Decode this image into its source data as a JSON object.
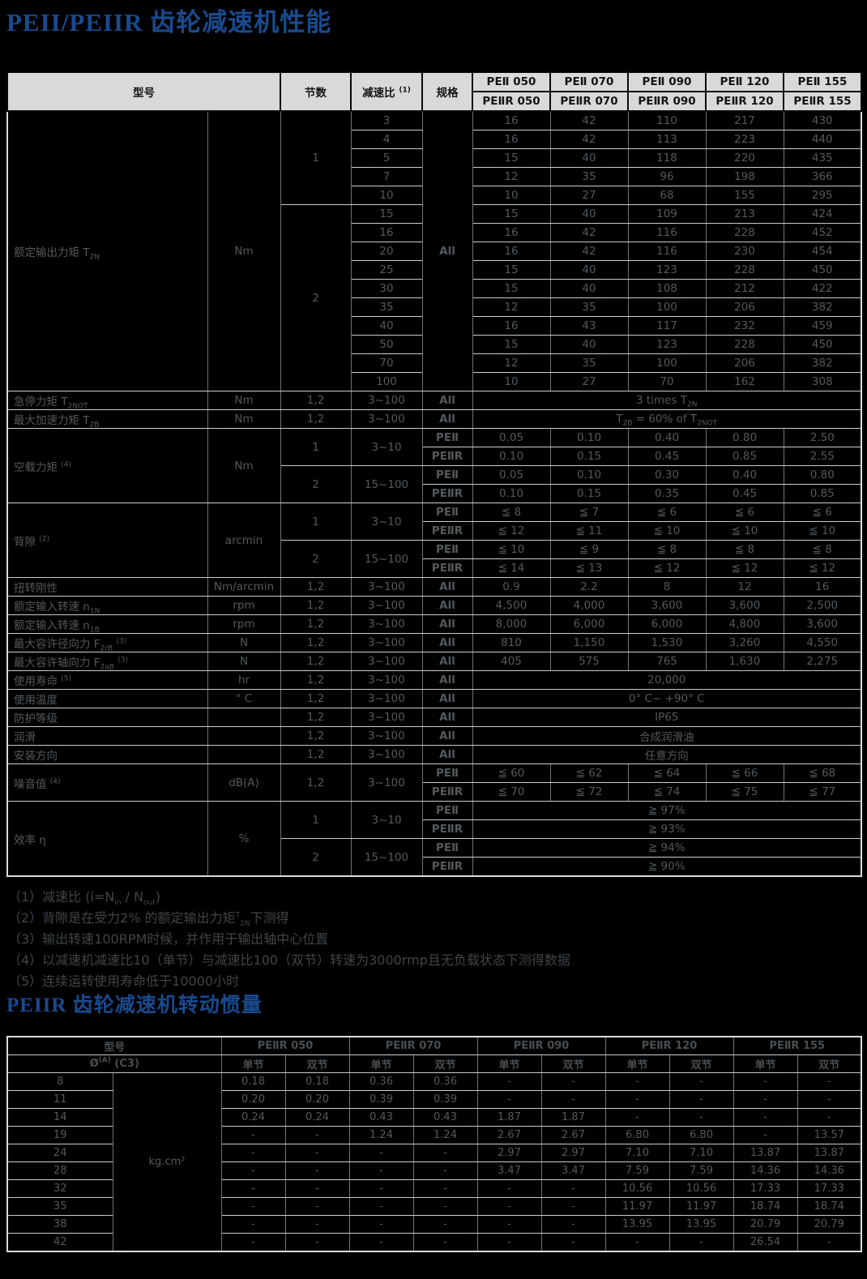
{
  "page": {
    "background": "#000000",
    "accent_blue": "#1a4a8e",
    "header_fill": "#d9d9d9"
  },
  "titles": {
    "performance": "PEII/PEIIR 齿轮减速机性能",
    "inertia": "PEIIR 齿轮减速机转动惯量"
  },
  "footnotes": [
    "（1）减速比 (i=N~in~ / N~out~)",
    "（2）背隙是在受力2% 的额定输出力矩^T^~2N~下测得",
    "（3）输出转速100RPM时候，并作用于输出轴中心位置",
    "（4）以减速机减速比10（单节）与减速比100（双节）转速为3000rmp且无负载状态下测得数据",
    "（5）连续运转使用寿命低于10000小时"
  ],
  "table1": {
    "rows": [
      [
        {
          "t": "型号",
          "cs": 2,
          "rs": 2,
          "c": "hdr"
        },
        {
          "t": "节数",
          "rs": 2,
          "c": "hdr"
        },
        {
          "t": "减速比 ^(1)^",
          "rs": 2,
          "c": "hdr"
        },
        {
          "t": "规格",
          "rs": 2,
          "c": "hdr"
        },
        {
          "t": "PEⅡ 050",
          "c": "hdr"
        },
        {
          "t": "PEⅡ 070",
          "c": "hdr"
        },
        {
          "t": "PEⅡ 090",
          "c": "hdr"
        },
        {
          "t": "PEⅡ 120",
          "c": "hdr"
        },
        {
          "t": "PEⅡ 155",
          "c": "hdr"
        }
      ],
      [
        {
          "t": "PEⅡR 050",
          "c": "hdr"
        },
        {
          "t": "PEⅡR 070",
          "c": "hdr"
        },
        {
          "t": "PEⅡR 090",
          "c": "hdr"
        },
        {
          "t": "PEⅡR 120",
          "c": "hdr"
        },
        {
          "t": "PEⅡR 155",
          "c": "hdr"
        }
      ],
      [
        {
          "t": "额定输出力矩 T~2N~",
          "c": "lbl",
          "rs": 15
        },
        {
          "t": "Nm",
          "c": "unit",
          "rs": 15
        },
        {
          "t": "1",
          "rs": 5
        },
        "3",
        {
          "t": "All",
          "c": "spec",
          "rs": 15
        },
        "16",
        "42",
        "110",
        "217",
        "430"
      ],
      [
        "4",
        "16",
        "42",
        "113",
        "223",
        "440"
      ],
      [
        "5",
        "15",
        "40",
        "118",
        "220",
        "435"
      ],
      [
        "7",
        "12",
        "35",
        "96",
        "198",
        "366"
      ],
      [
        "10",
        "10",
        "27",
        "68",
        "155",
        "295"
      ],
      [
        {
          "t": "2",
          "rs": 10
        },
        "15",
        "15",
        "40",
        "109",
        "213",
        "424"
      ],
      [
        "16",
        "16",
        "42",
        "116",
        "228",
        "452"
      ],
      [
        "20",
        "16",
        "42",
        "116",
        "230",
        "454"
      ],
      [
        "25",
        "15",
        "40",
        "123",
        "228",
        "450"
      ],
      [
        "30",
        "15",
        "40",
        "108",
        "212",
        "422"
      ],
      [
        "35",
        "12",
        "35",
        "100",
        "206",
        "382"
      ],
      [
        "40",
        "16",
        "43",
        "117",
        "232",
        "459"
      ],
      [
        "50",
        "15",
        "40",
        "123",
        "228",
        "450"
      ],
      [
        "70",
        "12",
        "35",
        "100",
        "206",
        "382"
      ],
      [
        "100",
        "10",
        "27",
        "70",
        "162",
        "308"
      ],
      [
        {
          "t": "急停力矩 T~2NOT~",
          "c": "lbl"
        },
        {
          "t": "Nm",
          "c": "unit"
        },
        "1,2",
        "3~100",
        {
          "t": "All",
          "c": "spec"
        },
        {
          "t": "3 times T~2N~",
          "cs": 5
        }
      ],
      [
        {
          "t": "最大加速力矩 T~2B~",
          "c": "lbl"
        },
        {
          "t": "Nm",
          "c": "unit"
        },
        "1,2",
        "3~100",
        {
          "t": "All",
          "c": "spec"
        },
        {
          "t": "T~2B~ = 60% of T~2NOT~",
          "cs": 5
        }
      ],
      [
        {
          "t": "空载力矩 ^(4)^",
          "c": "lbl",
          "rs": 4
        },
        {
          "t": "Nm",
          "c": "unit",
          "rs": 4
        },
        {
          "t": "1",
          "rs": 2
        },
        {
          "t": "3~10",
          "rs": 2
        },
        {
          "t": "PEⅡ",
          "c": "spec"
        },
        "0.05",
        "0.10",
        "0.40",
        "0.80",
        "2.50"
      ],
      [
        {
          "t": "PEⅡR",
          "c": "spec"
        },
        "0.10",
        "0.15",
        "0.45",
        "0.85",
        "2.55"
      ],
      [
        {
          "t": "2",
          "rs": 2
        },
        {
          "t": "15~100",
          "rs": 2
        },
        {
          "t": "PEⅡ",
          "c": "spec"
        },
        "0.05",
        "0.10",
        "0.30",
        "0.40",
        "0.80"
      ],
      [
        {
          "t": "PEⅡR",
          "c": "spec"
        },
        "0.10",
        "0.15",
        "0.35",
        "0.45",
        "0.85"
      ],
      [
        {
          "t": "背隙 ^(2)^",
          "c": "lbl",
          "rs": 4
        },
        {
          "t": "arcmin",
          "c": "unit",
          "rs": 4
        },
        {
          "t": "1",
          "rs": 2
        },
        {
          "t": "3~10",
          "rs": 2
        },
        {
          "t": "PEⅡ",
          "c": "spec"
        },
        "≦ 8",
        "≦ 7",
        "≦ 6",
        "≦ 6",
        "≦ 6"
      ],
      [
        {
          "t": "PEⅡR",
          "c": "spec"
        },
        "≦ 12",
        "≦ 11",
        "≦ 10",
        "≦ 10",
        "≦ 10"
      ],
      [
        {
          "t": "2",
          "rs": 2
        },
        {
          "t": "15~100",
          "rs": 2
        },
        {
          "t": "PEⅡ",
          "c": "spec"
        },
        "≦ 10",
        "≦ 9",
        "≦ 8",
        "≦ 8",
        "≦ 8"
      ],
      [
        {
          "t": "PEⅡR",
          "c": "spec"
        },
        "≦ 14",
        "≦ 13",
        "≦ 12",
        "≦ 12",
        "≦ 12"
      ],
      [
        {
          "t": "扭转刚性",
          "c": "lbl"
        },
        {
          "t": "Nm/arcmin",
          "c": "unit"
        },
        "1,2",
        "3~100",
        {
          "t": "All",
          "c": "spec"
        },
        "0.9",
        "2.2",
        "8",
        "12",
        "16"
      ],
      [
        {
          "t": "额定输入转速 n~1N~",
          "c": "lbl"
        },
        {
          "t": "rpm",
          "c": "unit"
        },
        "1,2",
        "3~100",
        {
          "t": "All",
          "c": "spec"
        },
        "4,500",
        "4,000",
        "3,600",
        "3,600",
        "2,500"
      ],
      [
        {
          "t": "额定输入转速 n~1B~",
          "c": "lbl"
        },
        {
          "t": "rpm",
          "c": "unit"
        },
        "1,2",
        "3~100",
        {
          "t": "All",
          "c": "spec"
        },
        "8,000",
        "6,000",
        "6,000",
        "4,800",
        "3,600"
      ],
      [
        {
          "t": "最大容许径向力 F~2rB~ ^(3)^",
          "c": "lbl"
        },
        {
          "t": "N",
          "c": "unit"
        },
        "1,2",
        "3~100",
        {
          "t": "All",
          "c": "spec"
        },
        "810",
        "1,150",
        "1,530",
        "3,260",
        "4,550"
      ],
      [
        {
          "t": "最大容许轴向力 F~2aB~ ^(3)^",
          "c": "lbl"
        },
        {
          "t": "N",
          "c": "unit"
        },
        "1,2",
        "3~100",
        {
          "t": "All",
          "c": "spec"
        },
        "405",
        "575",
        "765",
        "1,630",
        "2,275"
      ],
      [
        {
          "t": "使用寿命 ^(5)^",
          "c": "lbl"
        },
        {
          "t": "hr",
          "c": "unit"
        },
        "1,2",
        "3~100",
        {
          "t": "All",
          "c": "spec"
        },
        {
          "t": "20,000",
          "cs": 5
        }
      ],
      [
        {
          "t": "使用温度",
          "c": "lbl"
        },
        {
          "t": "° C",
          "c": "unit"
        },
        "1,2",
        "3~100",
        {
          "t": "All",
          "c": "spec"
        },
        {
          "t": "0° C~ +90° C",
          "cs": 5
        }
      ],
      [
        {
          "t": "防护等级",
          "c": "lbl"
        },
        {
          "t": "",
          "c": "unit"
        },
        "1,2",
        "3~100",
        {
          "t": "All",
          "c": "spec"
        },
        {
          "t": "IP65",
          "cs": 5
        }
      ],
      [
        {
          "t": "润滑",
          "c": "lbl"
        },
        {
          "t": "",
          "c": "unit"
        },
        "1,2",
        "3~100",
        {
          "t": "All",
          "c": "spec"
        },
        {
          "t": "合成润滑油",
          "cs": 5
        }
      ],
      [
        {
          "t": "安装方向",
          "c": "lbl"
        },
        {
          "t": "",
          "c": "unit"
        },
        "1,2",
        "3~100",
        {
          "t": "All",
          "c": "spec"
        },
        {
          "t": "任意方向",
          "cs": 5
        }
      ],
      [
        {
          "t": "噪音值 ^(4)^",
          "c": "lbl",
          "rs": 2
        },
        {
          "t": "dB(A)",
          "c": "unit",
          "rs": 2
        },
        {
          "t": "1,2",
          "rs": 2
        },
        {
          "t": "3~100",
          "rs": 2
        },
        {
          "t": "PEⅡ",
          "c": "spec"
        },
        "≦ 60",
        "≦ 62",
        "≦ 64",
        "≦ 66",
        "≦ 68"
      ],
      [
        {
          "t": "PEⅡR",
          "c": "spec"
        },
        "≦ 70",
        "≦ 72",
        "≦ 74",
        "≦ 75",
        "≦ 77"
      ],
      [
        {
          "t": "效率 η",
          "c": "lbl",
          "rs": 4
        },
        {
          "t": "%",
          "c": "unit",
          "rs": 4
        },
        {
          "t": "1",
          "rs": 2
        },
        {
          "t": "3~10",
          "rs": 2
        },
        {
          "t": "PEⅡ",
          "c": "spec"
        },
        {
          "t": "≧ 97%",
          "cs": 5
        }
      ],
      [
        {
          "t": "PEⅡR",
          "c": "spec"
        },
        {
          "t": "≧ 93%",
          "cs": 5
        }
      ],
      [
        {
          "t": "2",
          "rs": 2
        },
        {
          "t": "15~100",
          "rs": 2
        },
        {
          "t": "PEⅡ",
          "c": "spec"
        },
        {
          "t": "≧ 94%",
          "cs": 5
        }
      ],
      [
        {
          "t": "PEⅡR",
          "c": "spec"
        },
        {
          "t": "≧ 90%",
          "cs": 5
        }
      ]
    ]
  },
  "table2": {
    "rows": [
      [
        {
          "t": "型号",
          "cs": 2,
          "c": "hdr2"
        },
        {
          "t": "PEⅡR 050",
          "cs": 2,
          "c": "hdr2"
        },
        {
          "t": "PEⅡR 070",
          "cs": 2,
          "c": "hdr2"
        },
        {
          "t": "PEⅡR 090",
          "cs": 2,
          "c": "hdr2"
        },
        {
          "t": "PEⅡR 120",
          "cs": 2,
          "c": "hdr2"
        },
        {
          "t": "PEⅡR 155",
          "cs": 2,
          "c": "hdr2"
        }
      ],
      [
        {
          "t": "Ø^(A)^ (C3)",
          "cs": 2,
          "c": "hdr2s"
        },
        {
          "t": "单节",
          "c": "hdr2s"
        },
        {
          "t": "双节",
          "c": "hdr2s"
        },
        {
          "t": "单节",
          "c": "hdr2s"
        },
        {
          "t": "双节",
          "c": "hdr2s"
        },
        {
          "t": "单节",
          "c": "hdr2s"
        },
        {
          "t": "双节",
          "c": "hdr2s"
        },
        {
          "t": "单节",
          "c": "hdr2s"
        },
        {
          "t": "双节",
          "c": "hdr2s"
        },
        {
          "t": "单节",
          "c": "hdr2s"
        },
        {
          "t": "双节",
          "c": "hdr2s"
        }
      ],
      [
        "8",
        {
          "t": "kg.cm²",
          "c": "unit",
          "rs": 10
        },
        "0.18",
        "0.18",
        "0.36",
        "0.36",
        "-",
        "-",
        "-",
        "-",
        "-",
        "-"
      ],
      [
        "11",
        "0.20",
        "0.20",
        "0.39",
        "0.39",
        "-",
        "-",
        "-",
        "-",
        "-",
        "-"
      ],
      [
        "14",
        "0.24",
        "0.24",
        "0.43",
        "0.43",
        "1.87",
        "1.87",
        "-",
        "-",
        "-",
        "-"
      ],
      [
        "19",
        "-",
        "-",
        "1.24",
        "1.24",
        "2.67",
        "2.67",
        "6.80",
        "6.80",
        "-",
        "13.57"
      ],
      [
        "24",
        "-",
        "-",
        "-",
        "-",
        "2.97",
        "2.97",
        "7.10",
        "7.10",
        "13.87",
        "13.87"
      ],
      [
        "28",
        "-",
        "-",
        "-",
        "-",
        "3.47",
        "3.47",
        "7.59",
        "7.59",
        "14.36",
        "14.36"
      ],
      [
        "32",
        "-",
        "-",
        "-",
        "-",
        "-",
        "-",
        "10.56",
        "10.56",
        "17.33",
        "17.33"
      ],
      [
        "35",
        "-",
        "-",
        "-",
        "-",
        "-",
        "-",
        "11.97",
        "11.97",
        "18.74",
        "18.74"
      ],
      [
        "38",
        "-",
        "-",
        "-",
        "-",
        "-",
        "-",
        "13.95",
        "13.95",
        "20.79",
        "20.79"
      ],
      [
        "42",
        "-",
        "-",
        "-",
        "-",
        "-",
        "-",
        "-",
        "-",
        "26.54",
        "-"
      ]
    ]
  }
}
